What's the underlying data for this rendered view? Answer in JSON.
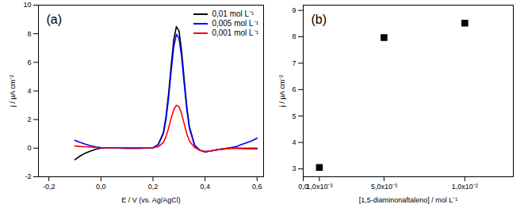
{
  "chart_data": [
    {
      "type": "line",
      "title": "(a)",
      "xlabel": "E / V (vs. Ag/AgCl)",
      "ylabel": "j / µA cm⁻²",
      "x": [
        -0.1,
        -0.08,
        -0.06,
        -0.04,
        -0.02,
        0,
        0.02,
        0.05,
        0.1,
        0.15,
        0.2,
        0.22,
        0.24,
        0.25,
        0.26,
        0.27,
        0.28,
        0.29,
        0.3,
        0.31,
        0.32,
        0.33,
        0.34,
        0.36,
        0.38,
        0.4,
        0.42,
        0.45,
        0.5,
        0.52,
        0.54,
        0.56,
        0.58,
        0.6
      ],
      "series": [
        {
          "name": "0,01 mol L⁻¹",
          "color": "#000000",
          "values": [
            -0.8,
            -0.55,
            -0.35,
            -0.2,
            -0.08,
            0,
            0.02,
            0.02,
            0,
            0,
            0.02,
            0.25,
            1.1,
            2.2,
            3.8,
            5.8,
            7.6,
            8.5,
            8.2,
            6.8,
            4.8,
            2.9,
            1.5,
            0.2,
            -0.15,
            -0.25,
            -0.2,
            -0.1,
            0,
            0,
            -0.02,
            -0.03,
            -0.04,
            -0.05
          ]
        },
        {
          "name": "0,005 mol L⁻¹",
          "color": "#0000ff",
          "values": [
            0.55,
            0.4,
            0.28,
            0.17,
            0.08,
            0.04,
            0.02,
            0.01,
            0,
            0,
            0.02,
            0.25,
            1.0,
            2.0,
            3.5,
            5.4,
            7.1,
            7.95,
            7.7,
            6.4,
            4.5,
            2.7,
            1.4,
            0.2,
            -0.15,
            -0.25,
            -0.2,
            -0.1,
            0.05,
            0.12,
            0.25,
            0.38,
            0.52,
            0.7
          ]
        },
        {
          "name": "0,001 mol L⁻¹",
          "color": "#ff0000",
          "values": [
            0.15,
            0.12,
            0.1,
            0.07,
            0.05,
            0.03,
            0.02,
            0.02,
            0.03,
            0.02,
            0.03,
            0.1,
            0.4,
            0.8,
            1.4,
            2.1,
            2.7,
            3.0,
            2.9,
            2.4,
            1.7,
            1.0,
            0.5,
            0.05,
            -0.15,
            -0.25,
            -0.2,
            -0.1,
            0,
            0,
            0,
            0,
            0,
            0
          ]
        }
      ],
      "xlim": [
        -0.24,
        0.625
      ],
      "xticks": [
        {
          "value": -0.2,
          "label": "-0,2"
        },
        {
          "value": 0,
          "label": "0,0"
        },
        {
          "value": 0.2,
          "label": "0,2"
        },
        {
          "value": 0.4,
          "label": "0,4"
        },
        {
          "value": 0.6,
          "label": "0,6"
        }
      ],
      "ylim": [
        -2,
        10
      ],
      "yticks": [
        -2,
        0,
        2,
        4,
        6,
        8,
        10
      ],
      "legend": "top-right"
    },
    {
      "type": "scatter",
      "title": "(b)",
      "xlabel": "[1,5-diaminonaftaleno] / mol L⁻¹",
      "ylabel": "j / µA cm⁻²",
      "x": [
        0.001,
        0.005,
        0.01
      ],
      "values": [
        3.05,
        7.97,
        8.52
      ],
      "color": "#000000",
      "marker": "square",
      "xlim": [
        0,
        0.013
      ],
      "xticks": [
        {
          "value": 0,
          "label": "0,0"
        },
        {
          "value": 0.001,
          "label": "1,0x10⁻³"
        },
        {
          "value": 0.005,
          "label": "5,0x10⁻³"
        },
        {
          "value": 0.01,
          "label": "1,0x10⁻²"
        }
      ],
      "ylim": [
        2.7,
        9.2
      ],
      "yticks": [
        3,
        4,
        5,
        6,
        7,
        8,
        9
      ]
    }
  ]
}
